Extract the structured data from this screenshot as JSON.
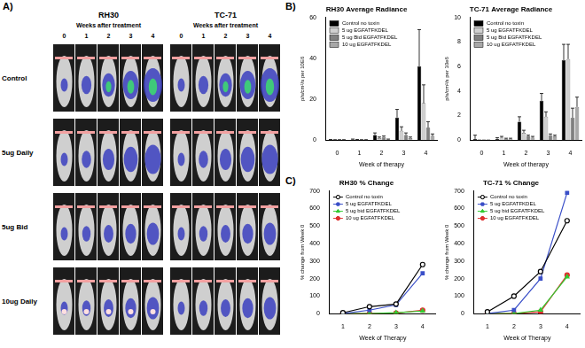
{
  "panel_labels": [
    "A)",
    "B)",
    "C)"
  ],
  "panel_a": {
    "groups": [
      "RH30",
      "TC-71"
    ],
    "subtitle": "Weeks after treatment",
    "weeks": [
      0,
      1,
      2,
      3,
      4
    ],
    "rows": [
      "Control",
      "5ug Daily",
      "5ug Bid",
      "10ug Daily"
    ]
  },
  "chart_data": [
    {
      "type": "bar",
      "title": "RH30 Average Radiance",
      "x_label": "Week of therapy",
      "y_label": "p/s/cm²/s per 10E6",
      "categories": [
        "0",
        "1",
        "2",
        "3",
        "4"
      ],
      "series": [
        {
          "name": "Control no toxin",
          "color": "#000000",
          "values": [
            0.2,
            0.3,
            2.5,
            11,
            36
          ],
          "errors": [
            0.1,
            0.2,
            1,
            4,
            18
          ]
        },
        {
          "name": "5 ug EGFATFKDEL",
          "color": "#d0d0d0",
          "values": [
            0.1,
            0.2,
            1,
            4.5,
            18
          ],
          "errors": [
            0.1,
            0.1,
            0.5,
            2,
            9
          ]
        },
        {
          "name": "5 ug Bid EGFATFKDEL",
          "color": "#808080",
          "values": [
            0.1,
            0.1,
            1.5,
            2.5,
            6
          ],
          "errors": [
            0.1,
            0.1,
            0.5,
            1,
            3
          ]
        },
        {
          "name": "10 ug EGFATFKDEL",
          "color": "#a8a8a8",
          "values": [
            0.1,
            0.1,
            0.3,
            1,
            2
          ],
          "errors": [
            0.1,
            0.1,
            0.2,
            0.5,
            1
          ]
        }
      ],
      "ylim": [
        0,
        60
      ],
      "yticks": [
        0,
        20,
        40,
        60
      ],
      "grid": false,
      "legend": "upper left"
    },
    {
      "type": "bar",
      "title": "TC-71 Average Radiance",
      "x_label": "Week of therapy",
      "y_label": "p/s/cm²/s per 10e6",
      "categories": [
        "0",
        "1",
        "2",
        "3",
        "4"
      ],
      "series": [
        {
          "name": "Control no toxin",
          "color": "#000000",
          "values": [
            0.1,
            0.1,
            1.5,
            3.2,
            6.5
          ],
          "errors": [
            0.3,
            0.1,
            0.4,
            0.6,
            1.3
          ]
        },
        {
          "name": "5 ug EGFATFKDEL",
          "color": "#d0d0d0",
          "values": [
            0,
            0.2,
            0.6,
            1.9,
            6.6
          ],
          "errors": [
            0,
            0.1,
            0.2,
            0.4,
            1.2
          ]
        },
        {
          "name": "5 ug Bid EGFATFKDEL",
          "color": "#808080",
          "values": [
            0,
            0.1,
            0.3,
            0.4,
            1.8
          ],
          "errors": [
            0,
            0.05,
            0.1,
            0.1,
            0.8
          ]
        },
        {
          "name": "10 ug EGFATFKDEL",
          "color": "#a8a8a8",
          "values": [
            0,
            0.1,
            0.2,
            0.3,
            2.7
          ],
          "errors": [
            0,
            0.05,
            0.1,
            0.1,
            0.8
          ]
        }
      ],
      "ylim": [
        0,
        10
      ],
      "yticks": [
        0,
        2,
        4,
        6,
        8,
        10
      ],
      "grid": false,
      "legend": "upper left"
    },
    {
      "type": "line",
      "title": "RH30 % Change",
      "x_label": "Week of Therapy",
      "y_label": "% change from Week 0",
      "categories": [
        "1",
        "2",
        "3",
        "4"
      ],
      "series": [
        {
          "name": "Control no toxin",
          "color": "#000000",
          "marker": "open_circle",
          "line_style": "solid",
          "values": [
            5,
            40,
            55,
            280
          ]
        },
        {
          "name": "5 ug EGFATFKDEL",
          "color": "#3a4fc8",
          "marker": "square",
          "line_style": "solid",
          "values": [
            0,
            20,
            50,
            230
          ]
        },
        {
          "name": "5 ug bid EGFATFKDEL",
          "color": "#33cc33",
          "marker": "triangle",
          "line_style": "solid",
          "values": [
            0,
            0,
            5,
            15
          ]
        },
        {
          "name": "10 ug EGFATFKDEL",
          "color": "#e03030",
          "marker": "circle",
          "line_style": "solid",
          "values": [
            0,
            0,
            3,
            20
          ]
        }
      ],
      "ylim": [
        0,
        700
      ],
      "yticks": [
        0,
        100,
        200,
        300,
        400,
        500,
        600,
        700
      ],
      "grid": false,
      "legend": "upper left"
    },
    {
      "type": "line",
      "title": "TC-71 % Change",
      "x_label": "Week of Therapy",
      "y_label": "% change from Week 0",
      "categories": [
        "1",
        "2",
        "3",
        "4"
      ],
      "series": [
        {
          "name": "Control no toxin",
          "color": "#000000",
          "marker": "open_circle",
          "line_style": "solid",
          "values": [
            10,
            100,
            240,
            530
          ]
        },
        {
          "name": "5 ug EGFATFKDEL",
          "color": "#3a4fc8",
          "marker": "square",
          "line_style": "solid",
          "values": [
            0,
            20,
            200,
            690
          ]
        },
        {
          "name": "5 ug bid EGFATFKDEL",
          "color": "#33cc33",
          "marker": "triangle",
          "line_style": "solid",
          "values": [
            0,
            0,
            20,
            210
          ]
        },
        {
          "name": "10 ug EGFATFKDEL",
          "color": "#e03030",
          "marker": "circle",
          "line_style": "solid",
          "values": [
            0,
            0,
            10,
            220
          ]
        }
      ],
      "ylim": [
        0,
        700
      ],
      "yticks": [
        0,
        100,
        200,
        300,
        400,
        500,
        600,
        700
      ],
      "grid": false,
      "legend": "upper left"
    }
  ]
}
